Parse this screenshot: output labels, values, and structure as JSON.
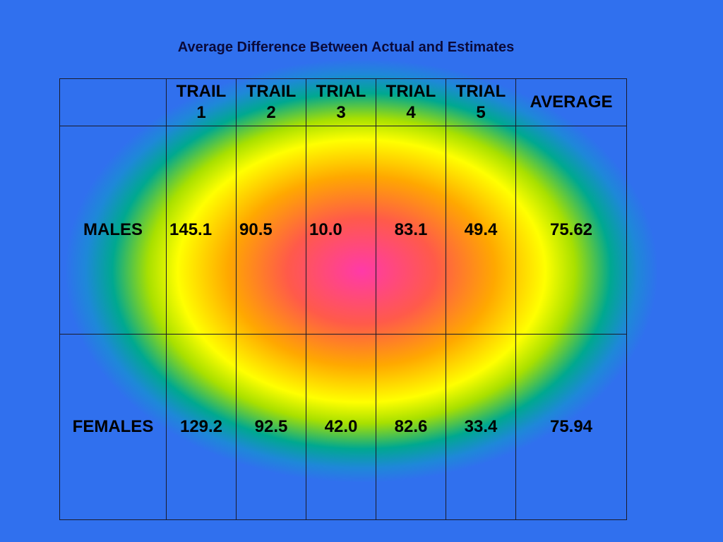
{
  "chart_data": {
    "type": "table",
    "title": "Average Difference Between Actual and Estimates",
    "columns": [
      {
        "line1": "",
        "line2": ""
      },
      {
        "line1": "TRAIL",
        "line2": "1"
      },
      {
        "line1": "TRAIL",
        "line2": "2"
      },
      {
        "line1": "TRIAL",
        "line2": "3"
      },
      {
        "line1": "TRIAL",
        "line2": "4"
      },
      {
        "line1": "TRIAL",
        "line2": "5"
      },
      {
        "line1": "AVERAGE",
        "line2": ""
      }
    ],
    "rows": [
      {
        "label": "MALES",
        "values": [
          "145.1",
          "90.5",
          "10.0",
          "83.1",
          "49.4",
          "75.62"
        ]
      },
      {
        "label": "FEMALES",
        "values": [
          "129.2",
          "92.5",
          "42.0",
          "82.6",
          "33.4",
          "75.94"
        ]
      }
    ]
  },
  "colors": {
    "background_center": "#ff3aa8",
    "background_mid": "#ffff00",
    "background_edge": "#3070ee",
    "title": "#0a0a3a"
  }
}
